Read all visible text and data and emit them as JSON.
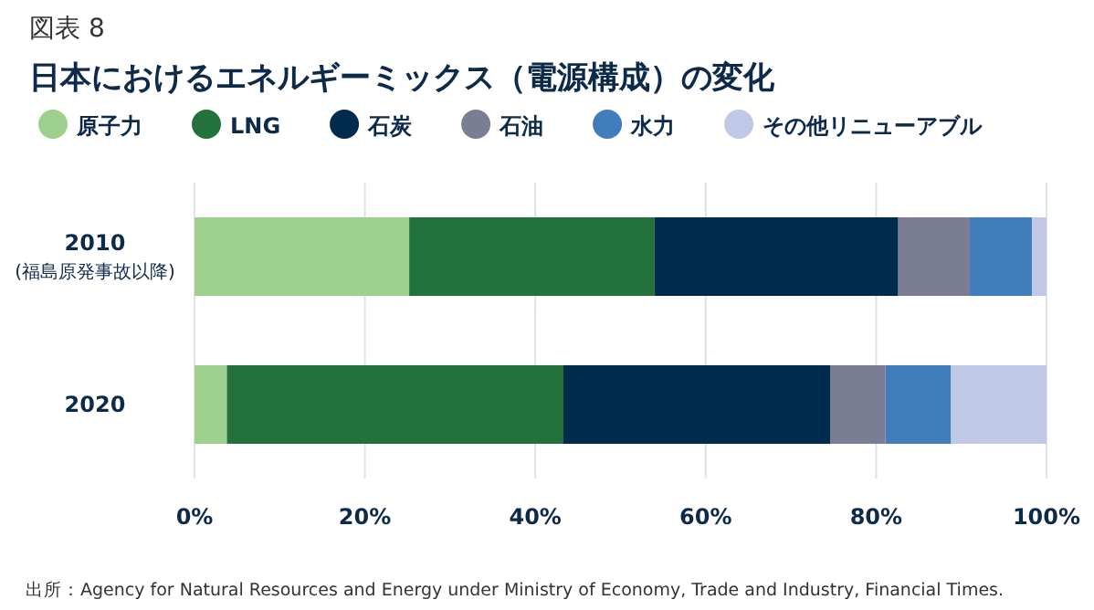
{
  "chart_data": {
    "type": "bar",
    "orientation": "horizontal",
    "stacked": true,
    "title": "日本におけるエネルギーミックス（電源構成）の変化",
    "subtitle": "図表 8",
    "categories": [
      "2010\n(福島原発事故以降)",
      "2020"
    ],
    "series": [
      {
        "name": "原子力",
        "color": "#9dd08f",
        "values": [
          25.2,
          3.8
        ]
      },
      {
        "name": "LNG",
        "color": "#23713b",
        "values": [
          28.8,
          39.5
        ]
      },
      {
        "name": "石炭",
        "color": "#002b4d",
        "values": [
          28.6,
          31.3
        ]
      },
      {
        "name": "石油",
        "color": "#7a7d93",
        "values": [
          8.4,
          6.5
        ]
      },
      {
        "name": "水力",
        "color": "#417cbd",
        "values": [
          7.3,
          7.7
        ]
      },
      {
        "name": "その他リニューアブル",
        "color": "#bfc9e6",
        "values": [
          1.7,
          11.2
        ]
      }
    ],
    "xlim": [
      0,
      100
    ],
    "xticks": [
      {
        "value": 0,
        "label": "0%"
      },
      {
        "value": 20,
        "label": "20%"
      },
      {
        "value": 40,
        "label": "40%"
      },
      {
        "value": 60,
        "label": "60%"
      },
      {
        "value": 80,
        "label": "80%"
      },
      {
        "value": 100,
        "label": "100%"
      }
    ],
    "grid": "x",
    "legend": "top left",
    "annotations": [
      "出所：Agency  for Natural Resources and Energy under Ministry of Economy,  Trade and Industry,  Financial Times."
    ]
  }
}
